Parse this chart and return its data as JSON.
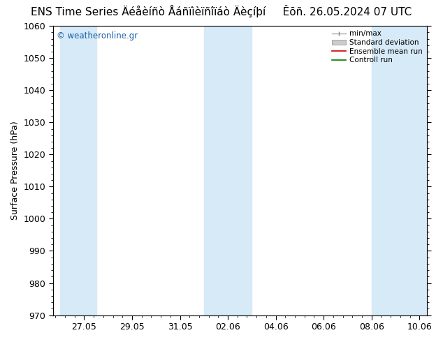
{
  "title": "ENS Time Series Äéåèíñò Åáñïìèïñîïáò Äèçíþí",
  "title_right": "Êõñ. 26.05.2024 07 UTC",
  "ylabel": "Surface Pressure (hPa)",
  "ylim": [
    970,
    1060
  ],
  "yticks": [
    970,
    980,
    990,
    1000,
    1010,
    1020,
    1030,
    1040,
    1050,
    1060
  ],
  "xtick_labels": [
    "27.05",
    "29.05",
    "31.05",
    "02.06",
    "04.06",
    "06.06",
    "08.06",
    "10.06"
  ],
  "shaded_color": "#d6eaf8",
  "background_color": "#ffffff",
  "plot_bg_color": "#ffffff",
  "watermark": "© weatheronline.gr",
  "watermark_color": "#1a5fa8",
  "tick_fontsize": 9,
  "title_fontsize": 11,
  "ylabel_fontsize": 9
}
